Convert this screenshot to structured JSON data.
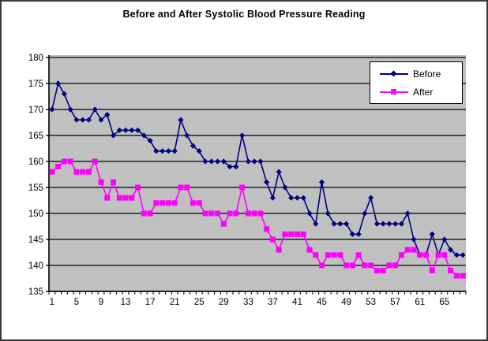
{
  "title": "Before and After Systolic Blood Pressure Reading",
  "colors": {
    "chart_bg": "#FFFFFF",
    "plot_bg": "#C0C0C0",
    "grid": "#000000",
    "before": "#000080",
    "after": "#FF00FF"
  },
  "legend": {
    "items": [
      {
        "label": "Before",
        "color": "#000080",
        "marker": "diamond"
      },
      {
        "label": "After",
        "color": "#FF00FF",
        "marker": "square"
      }
    ]
  },
  "chart_data": {
    "type": "line",
    "title": "Before and After Systolic Blood Pressure Reading",
    "xlabel": "",
    "ylabel": "",
    "ylim": [
      135,
      180
    ],
    "y_tick_step": 5,
    "y_tick_labels": [
      180,
      175,
      170,
      165,
      160,
      155,
      150,
      145,
      140,
      135
    ],
    "x_tick_labels": [
      1,
      5,
      9,
      13,
      17,
      21,
      25,
      29,
      33,
      37,
      41,
      45,
      49,
      53,
      57,
      61,
      65
    ],
    "n_points": 68,
    "grid": "horizontal",
    "legend_position": "top-right",
    "series": [
      {
        "name": "Before",
        "color": "#000080",
        "marker": "diamond",
        "values": [
          170,
          175,
          173,
          170,
          168,
          168,
          168,
          170,
          168,
          169,
          165,
          166,
          166,
          166,
          166,
          165,
          164,
          162,
          162,
          162,
          162,
          168,
          165,
          163,
          162,
          160,
          160,
          160,
          160,
          159,
          159,
          165,
          160,
          160,
          160,
          156,
          153,
          158,
          155,
          153,
          153,
          153,
          150,
          148,
          156,
          150,
          148,
          148,
          148,
          146,
          146,
          150,
          153,
          148,
          148,
          148,
          148,
          148,
          150,
          145,
          142,
          142,
          146,
          142,
          145,
          143,
          142,
          142
        ]
      },
      {
        "name": "After",
        "color": "#FF00FF",
        "marker": "square",
        "values": [
          158,
          159,
          160,
          160,
          158,
          158,
          158,
          160,
          156,
          153,
          156,
          153,
          153,
          153,
          155,
          150,
          150,
          152,
          152,
          152,
          152,
          155,
          155,
          152,
          152,
          150,
          150,
          150,
          148,
          150,
          150,
          155,
          150,
          150,
          150,
          147,
          145,
          143,
          146,
          146,
          146,
          146,
          143,
          142,
          140,
          142,
          142,
          142,
          140,
          140,
          142,
          140,
          140,
          139,
          139,
          140,
          140,
          142,
          143,
          143,
          142,
          142,
          139,
          142,
          142,
          139,
          138,
          138
        ]
      }
    ]
  }
}
